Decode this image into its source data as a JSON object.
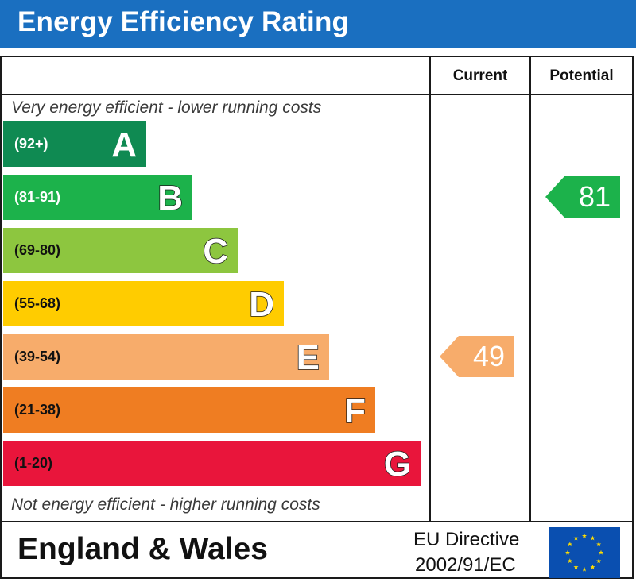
{
  "header": {
    "title": "Energy Efficiency Rating"
  },
  "columns": {
    "current": "Current",
    "potential": "Potential"
  },
  "captions": {
    "top": "Very energy efficient - lower running costs",
    "bottom": "Not energy efficient - higher running costs"
  },
  "chart_data": {
    "type": "bar",
    "title": "Energy Efficiency Rating",
    "bands": [
      {
        "letter": "A",
        "range": "(92+)",
        "color": "#0f8a52"
      },
      {
        "letter": "B",
        "range": "(81-91)",
        "color": "#1cb24b"
      },
      {
        "letter": "C",
        "range": "(69-80)",
        "color": "#8dc63f"
      },
      {
        "letter": "D",
        "range": "(55-68)",
        "color": "#ffcc00"
      },
      {
        "letter": "E",
        "range": "(39-54)",
        "color": "#f7ac6b"
      },
      {
        "letter": "F",
        "range": "(21-38)",
        "color": "#ef7d22"
      },
      {
        "letter": "G",
        "range": "(1-20)",
        "color": "#e9153b"
      }
    ],
    "current": {
      "value": "49",
      "band": "E",
      "color": "#f7ac6b"
    },
    "potential": {
      "value": "81",
      "band": "B",
      "color": "#1cb24b"
    }
  },
  "footer": {
    "country": "England & Wales",
    "directive_line1": "EU Directive",
    "directive_line2": "2002/91/EC"
  }
}
